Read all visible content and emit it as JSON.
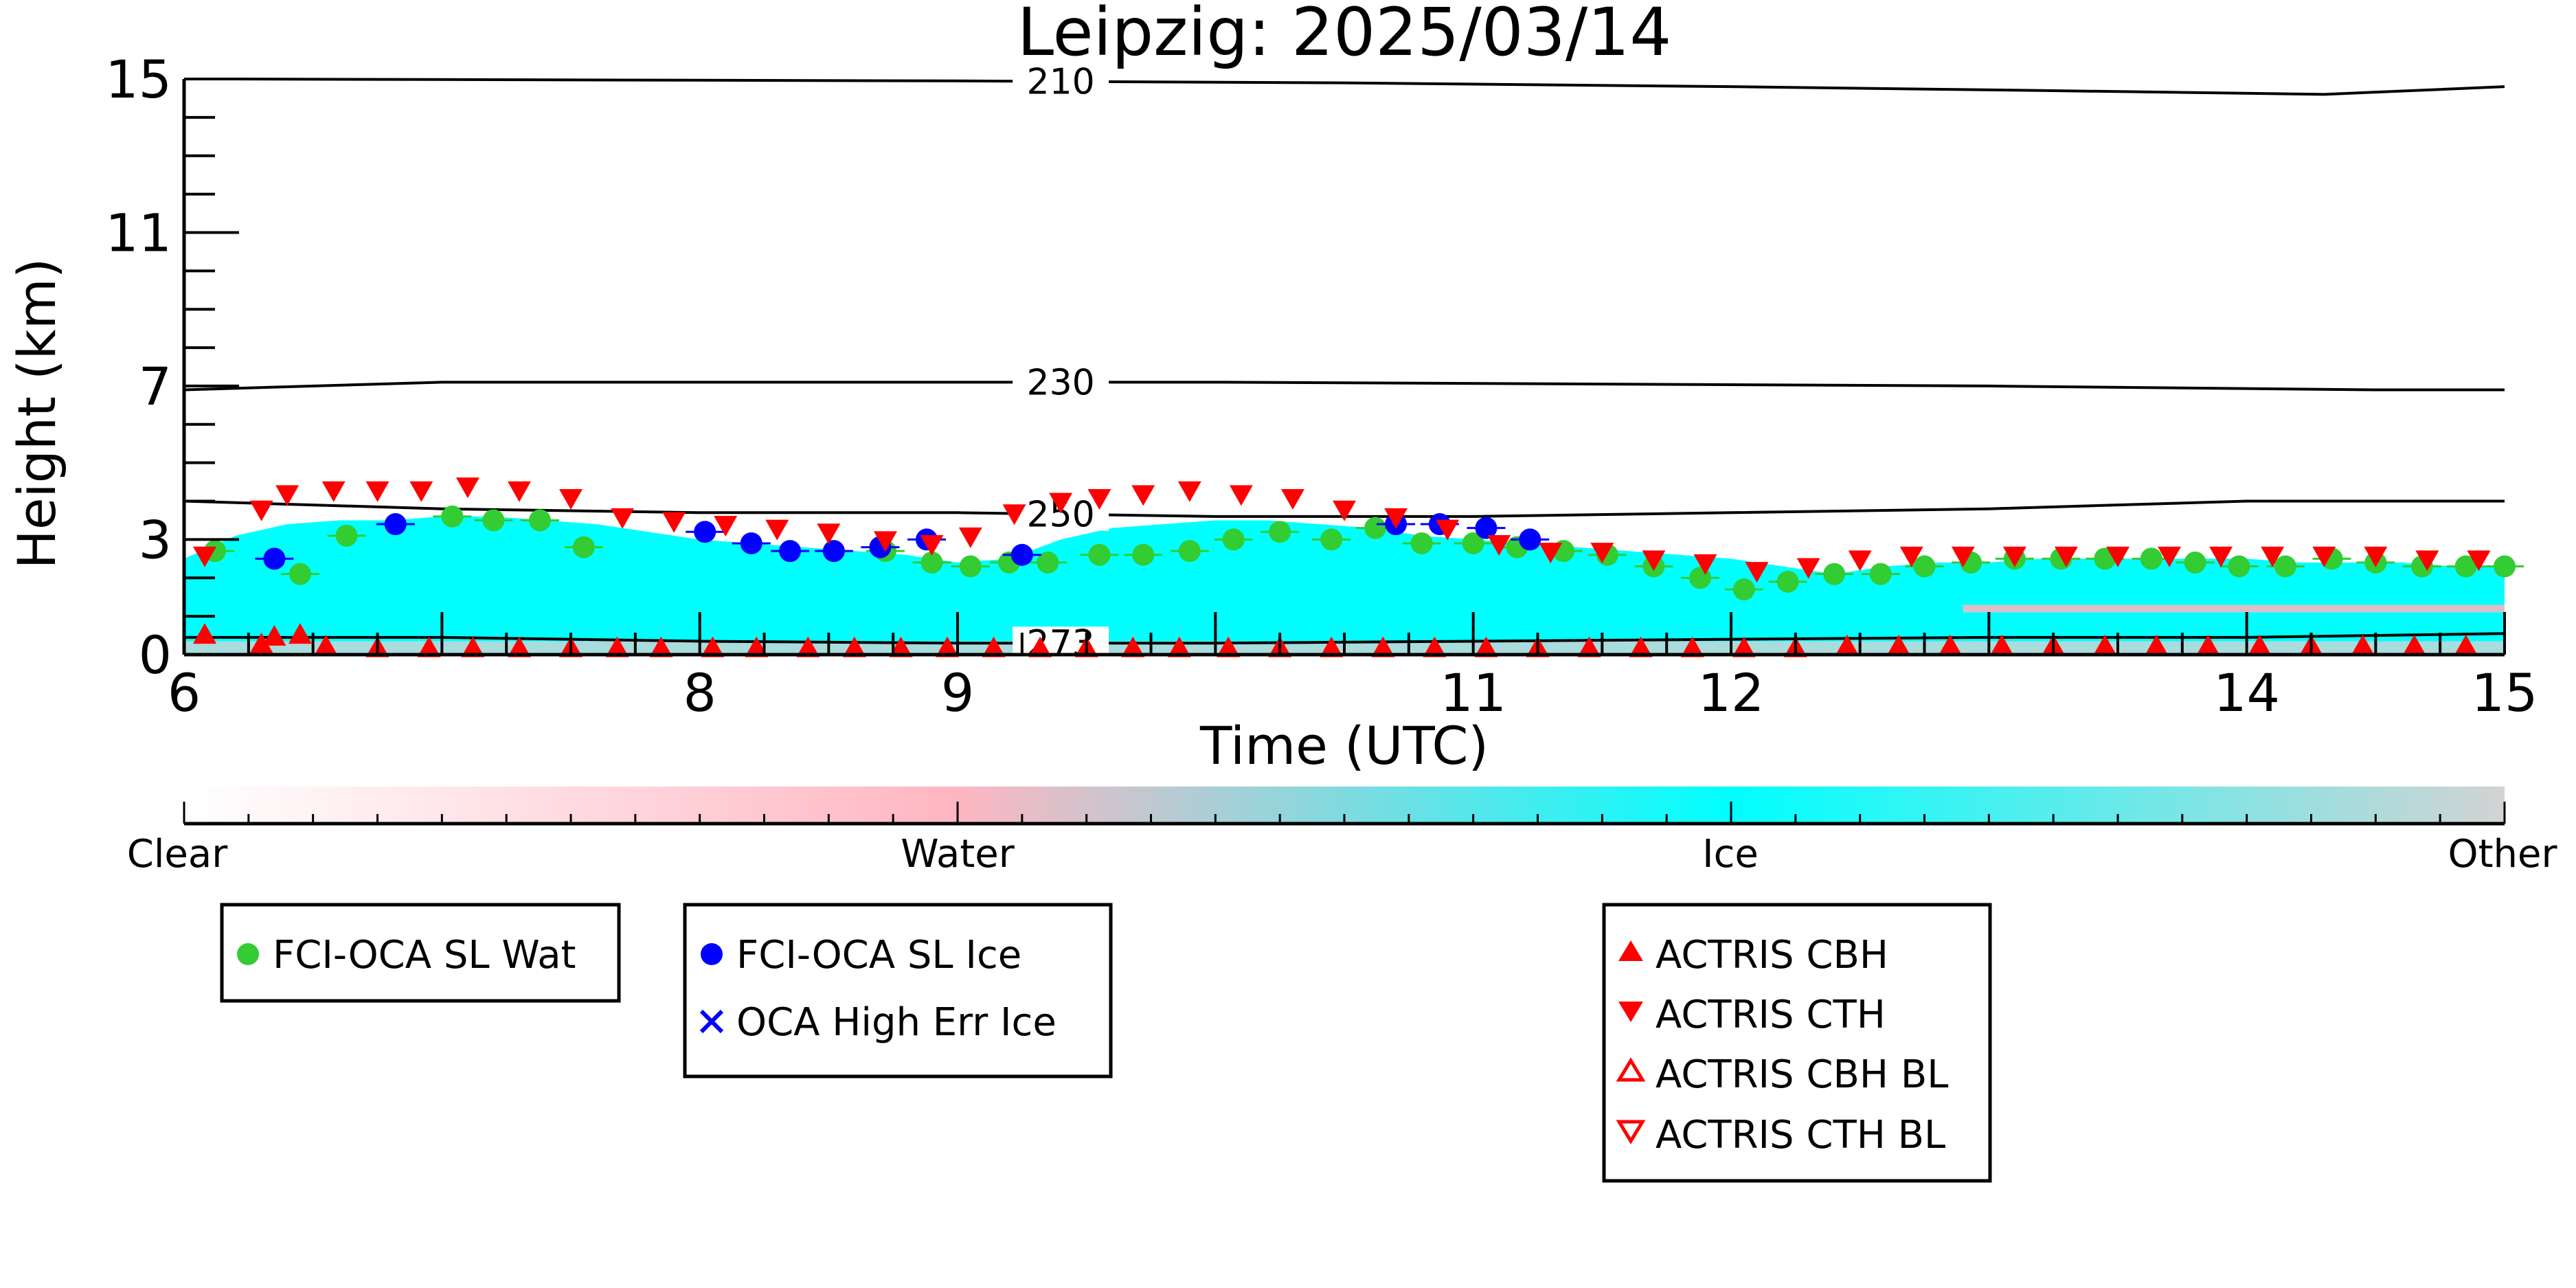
{
  "chart_data": {
    "type": "scatter",
    "title": "Leipzig: 2025/03/14",
    "xlabel": "Time (UTC)",
    "ylabel": "Height (km)",
    "xlim": [
      6,
      15
    ],
    "ylim": [
      0,
      15
    ],
    "x_ticks": [
      "6",
      "8",
      "9",
      "11",
      "12",
      "14",
      "15"
    ],
    "x_tick_values": [
      6,
      8,
      9,
      11,
      12,
      14,
      15
    ],
    "y_ticks": [
      "0",
      "3",
      "7",
      "11",
      "15"
    ],
    "y_tick_values": [
      0,
      3,
      7,
      11,
      15
    ],
    "grid": false,
    "background_classification": {
      "colorbar_labels": [
        "Clear",
        "Water",
        "Ice",
        "Other"
      ],
      "colors": {
        "clear": "#ffffff",
        "water": "#ffb6c1",
        "ice": "#00ffff",
        "other": "#d3d3d3"
      },
      "cloud_top_profile": {
        "x": [
          6.0,
          6.2,
          6.4,
          6.6,
          6.8,
          7.0,
          7.2,
          7.4,
          7.6,
          7.8,
          8.0,
          8.2,
          8.4,
          8.6,
          8.8,
          9.0,
          9.2,
          9.4,
          9.6,
          9.8,
          10.0,
          10.2,
          10.4,
          10.6,
          10.8,
          11.0,
          11.2,
          11.4,
          11.6,
          11.8,
          12.0,
          12.2,
          12.4,
          12.6,
          12.8,
          13.0,
          13.2,
          13.4,
          13.6,
          13.8,
          14.0,
          14.2,
          14.4,
          14.6,
          14.8,
          15.0
        ],
        "y": [
          2.5,
          3.1,
          3.4,
          3.5,
          3.5,
          3.6,
          3.6,
          3.5,
          3.4,
          3.2,
          3.0,
          2.9,
          2.8,
          2.7,
          2.6,
          2.4,
          2.5,
          3.0,
          3.3,
          3.4,
          3.5,
          3.5,
          3.4,
          3.3,
          3.1,
          3.0,
          2.9,
          2.8,
          2.7,
          2.6,
          2.5,
          2.3,
          2.1,
          2.3,
          2.4,
          2.4,
          2.5,
          2.5,
          2.5,
          2.5,
          2.5,
          2.4,
          2.4,
          2.4,
          2.3,
          2.3
        ]
      }
    },
    "temperature_contours": [
      {
        "label": "210",
        "x": [
          6.2,
          9.0,
          10.5,
          12.0,
          13.2,
          14.3,
          15.0
        ],
        "y": [
          15.0,
          14.95,
          14.9,
          14.8,
          14.7,
          14.6,
          14.8
        ],
        "label_x": 9.4
      },
      {
        "label": "230",
        "x": [
          6.0,
          7.0,
          8.5,
          10.0,
          11.5,
          13.0,
          14.5,
          15.0
        ],
        "y": [
          6.9,
          7.1,
          7.1,
          7.1,
          7.05,
          7.0,
          6.9,
          6.9
        ],
        "label_x": 9.4
      },
      {
        "label": "250",
        "x": [
          6.0,
          7.0,
          8.0,
          9.0,
          10.0,
          11.0,
          12.0,
          13.0,
          14.0,
          15.0
        ],
        "y": [
          4.0,
          3.8,
          3.7,
          3.7,
          3.6,
          3.6,
          3.7,
          3.8,
          4.0,
          4.0
        ],
        "label_x": 9.4
      },
      {
        "label": "273",
        "x": [
          6.0,
          7.0,
          8.0,
          9.0,
          10.0,
          11.0,
          12.0,
          13.0,
          14.0,
          15.0
        ],
        "y": [
          0.45,
          0.45,
          0.35,
          0.3,
          0.3,
          0.35,
          0.4,
          0.45,
          0.45,
          0.55
        ],
        "label_x": 9.4
      }
    ],
    "series": [
      {
        "name": "FCI-OCA SL Wat",
        "marker": "circle",
        "color": "#33cc33",
        "x": [
          6.12,
          6.45,
          6.63,
          7.04,
          7.2,
          7.38,
          7.55,
          8.72,
          8.9,
          9.05,
          9.2,
          9.35,
          9.55,
          9.72,
          9.9,
          10.07,
          10.25,
          10.45,
          10.62,
          10.8,
          11.0,
          11.17,
          11.35,
          11.52,
          11.7,
          11.88,
          12.05,
          12.22,
          12.4,
          12.58,
          12.75,
          12.93,
          13.1,
          13.28,
          13.45,
          13.63,
          13.8,
          13.97,
          14.15,
          14.33,
          14.5,
          14.68,
          14.85,
          15.0
        ],
        "y": [
          2.7,
          2.1,
          3.1,
          3.6,
          3.5,
          3.5,
          2.8,
          2.7,
          2.4,
          2.3,
          2.4,
          2.4,
          2.6,
          2.6,
          2.7,
          3.0,
          3.2,
          3.0,
          3.3,
          2.9,
          2.9,
          2.8,
          2.7,
          2.6,
          2.3,
          2.0,
          1.7,
          1.9,
          2.1,
          2.1,
          2.3,
          2.4,
          2.5,
          2.5,
          2.5,
          2.5,
          2.4,
          2.3,
          2.3,
          2.5,
          2.4,
          2.3,
          2.3,
          2.3
        ]
      },
      {
        "name": "FCI-OCA SL Ice",
        "marker": "circle",
        "color": "#0000ff",
        "x": [
          6.35,
          6.82,
          8.02,
          8.2,
          8.35,
          8.52,
          8.7,
          8.88,
          9.25,
          10.7,
          10.87,
          11.05,
          11.22
        ],
        "y": [
          2.5,
          3.4,
          3.2,
          2.9,
          2.7,
          2.7,
          2.8,
          3.0,
          2.6,
          3.4,
          3.4,
          3.3,
          3.0
        ]
      },
      {
        "name": "OCA High Err Ice",
        "marker": "x",
        "color": "#0000ff",
        "x": [],
        "y": []
      },
      {
        "name": "ACTRIS CBH",
        "marker": "triangle-up",
        "color": "#ff0000",
        "x": [
          6.08,
          6.3,
          6.35,
          6.45,
          6.55,
          6.75,
          6.95,
          7.12,
          7.3,
          7.5,
          7.68,
          7.85,
          8.05,
          8.22,
          8.42,
          8.6,
          8.78,
          8.96,
          9.14,
          9.32,
          9.5,
          9.68,
          9.86,
          10.05,
          10.25,
          10.45,
          10.65,
          10.85,
          11.05,
          11.25,
          11.45,
          11.65,
          11.85,
          12.05,
          12.25,
          12.45,
          12.65,
          12.85,
          13.05,
          13.25,
          13.45,
          13.65,
          13.85,
          14.05,
          14.25,
          14.45,
          14.65,
          14.85
        ],
        "y": [
          0.5,
          0.25,
          0.45,
          0.5,
          0.2,
          0.15,
          0.15,
          0.15,
          0.15,
          0.15,
          0.15,
          0.15,
          0.15,
          0.15,
          0.15,
          0.15,
          0.15,
          0.15,
          0.15,
          0.15,
          0.15,
          0.15,
          0.15,
          0.15,
          0.15,
          0.15,
          0.15,
          0.15,
          0.15,
          0.15,
          0.15,
          0.15,
          0.15,
          0.15,
          0.15,
          0.2,
          0.2,
          0.2,
          0.2,
          0.2,
          0.2,
          0.2,
          0.2,
          0.2,
          0.2,
          0.2,
          0.2,
          0.2
        ]
      },
      {
        "name": "ACTRIS CTH",
        "marker": "triangle-down",
        "color": "#ff0000",
        "x": [
          6.08,
          6.3,
          6.4,
          6.58,
          6.75,
          6.92,
          7.1,
          7.3,
          7.5,
          7.7,
          7.9,
          8.1,
          8.3,
          8.5,
          8.72,
          8.9,
          9.05,
          9.22,
          9.4,
          9.55,
          9.72,
          9.9,
          10.1,
          10.3,
          10.5,
          10.7,
          10.9,
          11.1,
          11.3,
          11.5,
          11.7,
          11.9,
          12.1,
          12.3,
          12.5,
          12.7,
          12.9,
          13.1,
          13.3,
          13.5,
          13.7,
          13.9,
          14.1,
          14.3,
          14.5,
          14.7,
          14.9
        ],
        "y": [
          2.6,
          3.8,
          4.2,
          4.3,
          4.3,
          4.3,
          4.4,
          4.3,
          4.1,
          3.6,
          3.5,
          3.4,
          3.3,
          3.2,
          3.0,
          2.9,
          3.1,
          3.7,
          4.0,
          4.1,
          4.2,
          4.3,
          4.2,
          4.1,
          3.8,
          3.6,
          3.3,
          2.9,
          2.7,
          2.7,
          2.5,
          2.4,
          2.2,
          2.3,
          2.5,
          2.6,
          2.6,
          2.6,
          2.6,
          2.6,
          2.6,
          2.6,
          2.6,
          2.6,
          2.6,
          2.5,
          2.5
        ]
      },
      {
        "name": "ACTRIS CBH BL",
        "marker": "triangle-up-open",
        "color": "#ff0000",
        "x": [],
        "y": []
      },
      {
        "name": "ACTRIS CTH BL",
        "marker": "triangle-down-open",
        "color": "#ff0000",
        "x": [],
        "y": []
      }
    ],
    "legend": {
      "groups": [
        [
          "FCI-OCA SL Wat"
        ],
        [
          "FCI-OCA SL Ice",
          "OCA High Err Ice"
        ],
        [
          "ACTRIS CBH",
          "ACTRIS CTH",
          "ACTRIS CBH BL",
          "ACTRIS CTH BL"
        ]
      ],
      "placement": "below"
    }
  }
}
